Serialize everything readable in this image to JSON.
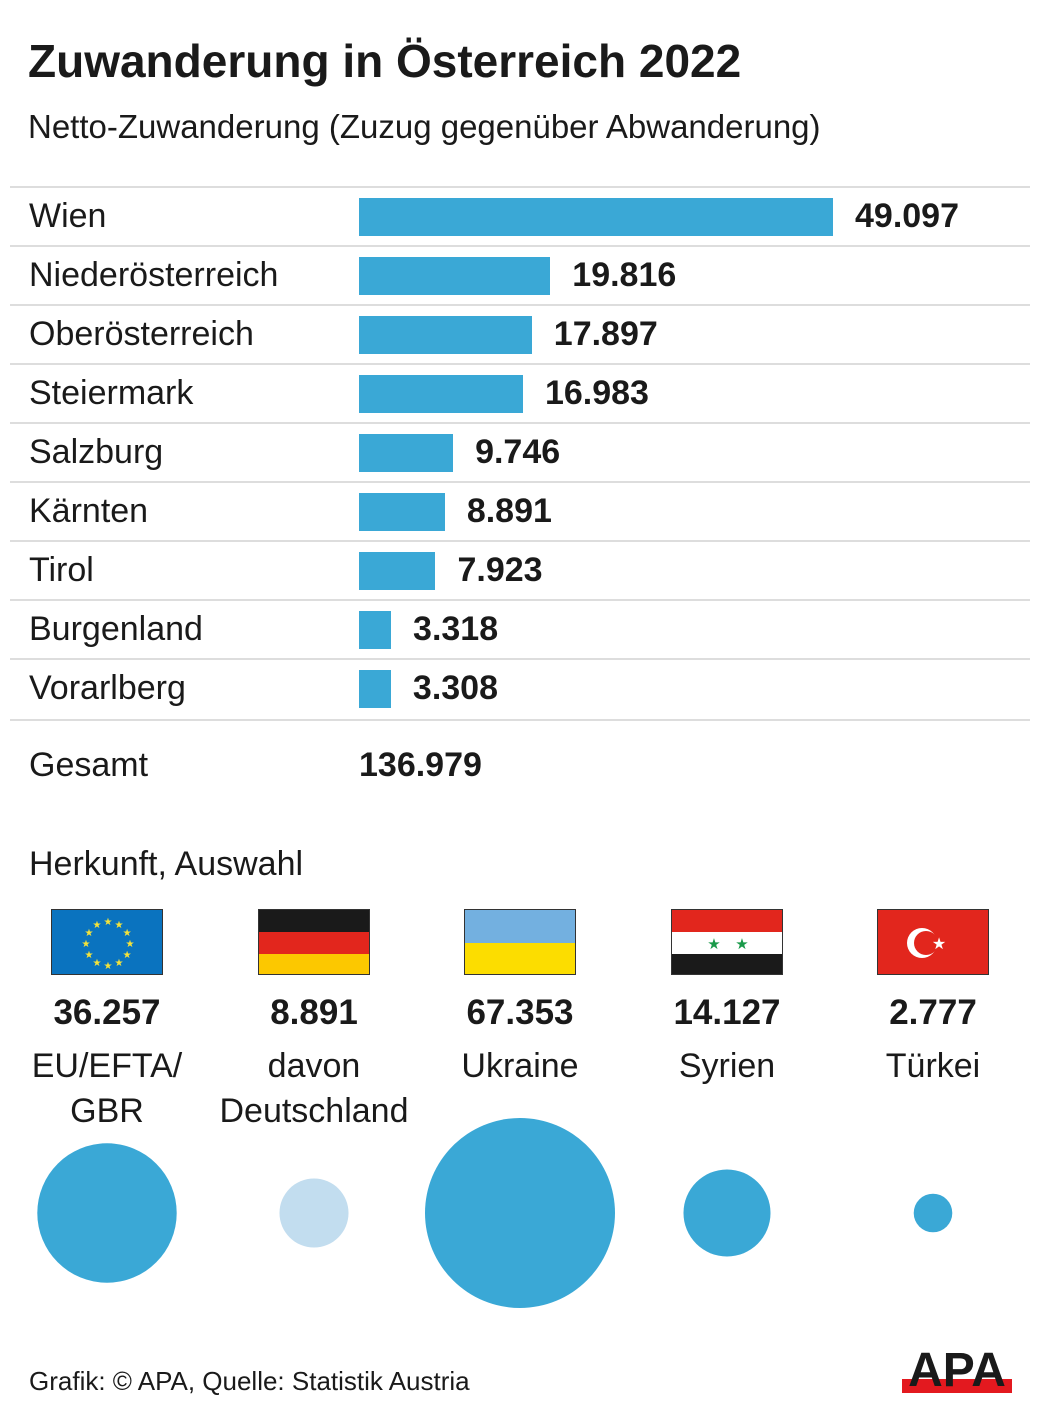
{
  "title": "Zuwanderung in Österreich 2022",
  "subtitle": "Netto-Zuwanderung (Zuzug gegenüber Abwanderung)",
  "chart_data": [
    {
      "type": "bar",
      "orientation": "horizontal",
      "categories": [
        "Wien",
        "Niederösterreich",
        "Oberösterreich",
        "Steiermark",
        "Salzburg",
        "Kärnten",
        "Tirol",
        "Burgenland",
        "Vorarlberg"
      ],
      "values": [
        49097,
        19816,
        17897,
        16983,
        9746,
        8891,
        7923,
        3318,
        3308
      ],
      "value_labels": [
        "49.097",
        "19.816",
        "17.897",
        "16.983",
        "9.746",
        "8.891",
        "7.923",
        "3.318",
        "3.308"
      ],
      "bar_color": "#3aa8d6",
      "total_label": "Gesamt",
      "total_value": "136.979"
    },
    {
      "type": "bubble",
      "title": "Herkunft, Auswahl",
      "categories": [
        "EU/EFTA/ GBR",
        "davon Deutschland",
        "Ukraine",
        "Syrien",
        "Türkei"
      ],
      "label_lines": [
        [
          "EU/EFTA/",
          "GBR"
        ],
        [
          "davon",
          "Deutschland"
        ],
        [
          "Ukraine"
        ],
        [
          "Syrien"
        ],
        [
          "Türkei"
        ]
      ],
      "values": [
        36257,
        8891,
        67353,
        14127,
        2777
      ],
      "value_labels": [
        "36.257",
        "8.891",
        "67.353",
        "14.127",
        "2.777"
      ],
      "flags": [
        "eu-flag",
        "germany-flag",
        "ukraine-flag",
        "syria-flag",
        "turkey-flag"
      ],
      "colors": [
        "#3aa8d6",
        "#c2ddef",
        "#3aa8d6",
        "#3aa8d6",
        "#3aa8d6"
      ]
    }
  ],
  "source": "Grafik: © APA, Quelle: Statistik Austria",
  "logo": "APA"
}
